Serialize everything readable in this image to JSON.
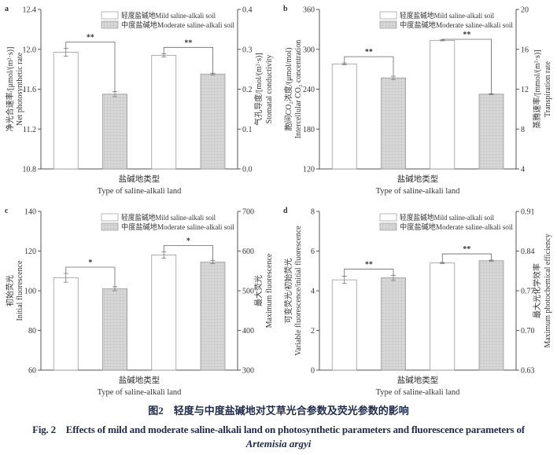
{
  "legend": {
    "mild": "轻度盐碱地Mild saline-alkali soil",
    "moderate": "中度盐碱地Moderate saline-alkali soil"
  },
  "colors": {
    "mild_fill": "#ffffff",
    "moderate_fill": "#d9d9d9",
    "axis": "#555555"
  },
  "chart_data": [
    {
      "type": "bar",
      "panel_label": "a",
      "xlabel_cn": "盐碱地类型",
      "xlabel_en": "Type of saline-alkali land",
      "ylabel_left_cn": "净光合速率/[μmol/(m²·s)]",
      "ylabel_left_en": "Net photosynthetic rate",
      "ylabel_right_cn": "气孔导度/[mol/(m²·s)]",
      "ylabel_right_en": "Stomatal conductivity",
      "ylim_left": [
        10.8,
        12.4
      ],
      "yticks_left": [
        "10.8",
        "11.2",
        "11.6",
        "12.0",
        "12.4"
      ],
      "ylim_right": [
        0.0,
        0.4
      ],
      "yticks_right": [
        "0.0",
        "0.1",
        "0.2",
        "0.3",
        "0.4"
      ],
      "bars": [
        {
          "series": "mild",
          "axis": "left",
          "value": 11.97,
          "error": 0.04
        },
        {
          "series": "moderate",
          "axis": "left",
          "value": 11.55,
          "error": 0.025
        },
        {
          "series": "mild",
          "axis": "right",
          "value": 0.285,
          "error": 0.004
        },
        {
          "series": "moderate",
          "axis": "right",
          "value": 0.238,
          "error": 0.002
        }
      ],
      "significance": [
        "**",
        "**"
      ]
    },
    {
      "type": "bar",
      "panel_label": "b",
      "xlabel_cn": "盐碱地类型",
      "xlabel_en": "Type of saline-alkali land",
      "ylabel_left_cn": "胞间CO₂浓度/(μmol/mol)",
      "ylabel_left_en": "Intercellular CO₂ concentration",
      "ylabel_right_cn": "蒸腾速率/[mmol/(m²·s)]",
      "ylabel_right_en": "Transpiration rate",
      "ylim_left": [
        120,
        360
      ],
      "yticks_left": [
        "120",
        "180",
        "240",
        "300",
        "360"
      ],
      "ylim_right": [
        4,
        20
      ],
      "yticks_right": [
        "4",
        "8",
        "12",
        "16",
        "20"
      ],
      "bars": [
        {
          "series": "mild",
          "axis": "left",
          "value": 278,
          "error": 1.5
        },
        {
          "series": "moderate",
          "axis": "left",
          "value": 257,
          "error": 2.5
        },
        {
          "series": "mild",
          "axis": "right",
          "value": 16.9,
          "error": 0.05
        },
        {
          "series": "moderate",
          "axis": "right",
          "value": 11.5,
          "error": 0.05
        }
      ],
      "significance": [
        "**",
        "**"
      ]
    },
    {
      "type": "bar",
      "panel_label": "c",
      "xlabel_cn": "盐碱地类型",
      "xlabel_en": "Type of saline-alkali land",
      "ylabel_left_cn": "初始荧光",
      "ylabel_left_en": "Initial fluorescence",
      "ylabel_right_cn": "最大荧光",
      "ylabel_right_en": "Maximum fluorescence",
      "ylim_left": [
        60,
        140
      ],
      "yticks_left": [
        "60",
        "80",
        "100",
        "120",
        "140"
      ],
      "ylim_right": [
        300,
        700
      ],
      "yticks_right": [
        "300",
        "400",
        "500",
        "600",
        "700"
      ],
      "bars": [
        {
          "series": "mild",
          "axis": "left",
          "value": 106.5,
          "error": 2.2
        },
        {
          "series": "moderate",
          "axis": "left",
          "value": 101,
          "error": 1.0
        },
        {
          "series": "mild",
          "axis": "right",
          "value": 590,
          "error": 8
        },
        {
          "series": "moderate",
          "axis": "right",
          "value": 572,
          "error": 4
        }
      ],
      "significance": [
        "*",
        "*"
      ]
    },
    {
      "type": "bar",
      "panel_label": "d",
      "xlabel_cn": "盐碱地类型",
      "xlabel_en": "Type of saline-alkali land",
      "ylabel_left_cn": "可变荧光/初始荧光",
      "ylabel_left_en": "Variable fluorescence/initial fluorescence",
      "ylabel_right_cn": "最大光化学效率",
      "ylabel_right_en": "Maximum photochemical efficiency",
      "ylim_left": [
        0,
        8
      ],
      "yticks_left": [
        "0",
        "2",
        "4",
        "6",
        "8"
      ],
      "ylim_right": [
        0.63,
        0.91
      ],
      "yticks_right": [
        "0.63",
        "0.70",
        "0.77",
        "0.84",
        "0.91"
      ],
      "bars": [
        {
          "series": "mild",
          "axis": "left",
          "value": 4.55,
          "error": 0.18
        },
        {
          "series": "moderate",
          "axis": "left",
          "value": 4.65,
          "error": 0.13
        },
        {
          "series": "mild",
          "axis": "right",
          "value": 0.819,
          "error": 0.001
        },
        {
          "series": "moderate",
          "axis": "right",
          "value": 0.823,
          "error": 0.001
        }
      ],
      "significance": [
        "**",
        "**"
      ]
    }
  ],
  "caption": {
    "cn": "图2　轻度与中度盐碱地对艾草光合参数及荧光参数的影响",
    "en": "Fig. 2　Effects of mild and moderate saline-alkali land on photosynthetic parameters and fluorescence parameters of",
    "species": "Artemisia argyi"
  }
}
